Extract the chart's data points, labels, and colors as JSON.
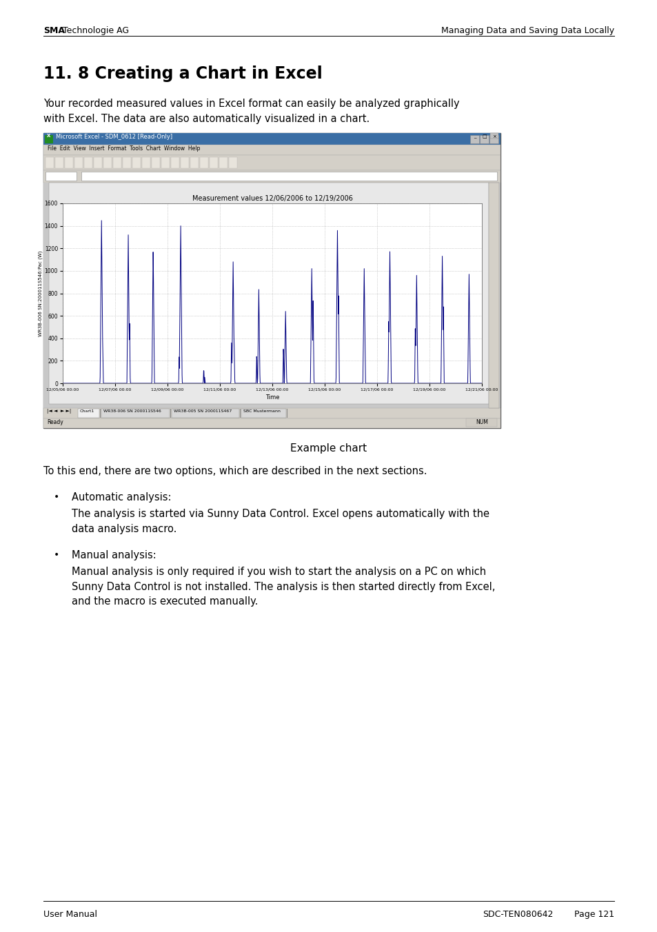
{
  "page_bg": "#ffffff",
  "header_left_bold": "SMA",
  "header_left_regular": " Technologie AG",
  "header_right": "Managing Data and Saving Data Locally",
  "section_title": "11. 8 Creating a Chart in Excel",
  "intro_text": "Your recorded measured values in Excel format can easily be analyzed graphically\nwith Excel. The data are also automatically visualized in a chart.",
  "excel_title_bar": "Microsoft Excel - SDM_0612 [Read-Only]",
  "excel_menu": "File  Edit  View  Insert  Format  Tools  Chart  Window  Help",
  "chart_title": "Measurement values 12/06/2006 to 12/19/2006",
  "chart_ylabel": "WR3B-006 SN:200011S546:Pac (W)",
  "chart_xlabel": "Time",
  "chart_yticks": [
    0,
    200,
    400,
    600,
    800,
    1000,
    1200,
    1400,
    1600
  ],
  "chart_xticks": [
    "12/05/06 00:00",
    "12/07/06 00:00",
    "12/09/06 00:00",
    "12/11/06 00:00",
    "12/13/06 00:00",
    "12/15/06 00:00",
    "12/17/06 00:00",
    "12/19/06 00:00",
    "12/21/06 00:00"
  ],
  "caption": "Example chart",
  "body_text1": "To this end, there are two options, which are described in the next sections.",
  "bullet1_title": "Automatic analysis:",
  "bullet1_body": "The analysis is started via Sunny Data Control. Excel opens automatically with the\ndata analysis macro.",
  "bullet2_title": "Manual analysis:",
  "bullet2_body": "Manual analysis is only required if you wish to start the analysis on a PC on which\nSunny Data Control is not installed. The analysis is then started directly from Excel,\nand the macro is executed manually.",
  "footer_left": "User Manual",
  "footer_center": "SDC-TEN080642",
  "footer_right": "Page 121",
  "chart_line_color": "#000080",
  "chart_grid_color": "#b0b0b0",
  "excel_blue": "#3a6ea5",
  "excel_gray": "#d4d0c8",
  "excel_darkgray": "#808080",
  "excel_frame_gray": "#a0a0a0"
}
